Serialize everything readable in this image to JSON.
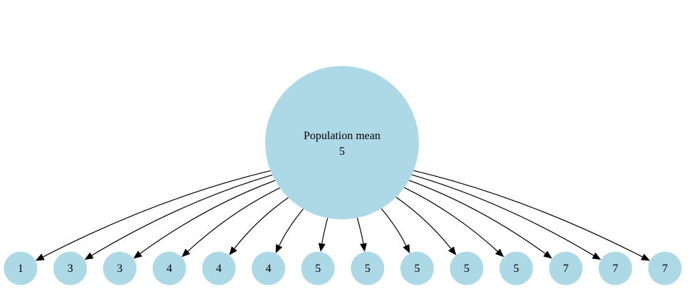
{
  "root": {
    "label": "Population mean",
    "value": "5",
    "fill": "#add8e6"
  },
  "samples": [
    "1",
    "3",
    "3",
    "4",
    "4",
    "4",
    "5",
    "5",
    "5",
    "5",
    "5",
    "7",
    "7",
    "7"
  ],
  "edge_color": "#000000"
}
